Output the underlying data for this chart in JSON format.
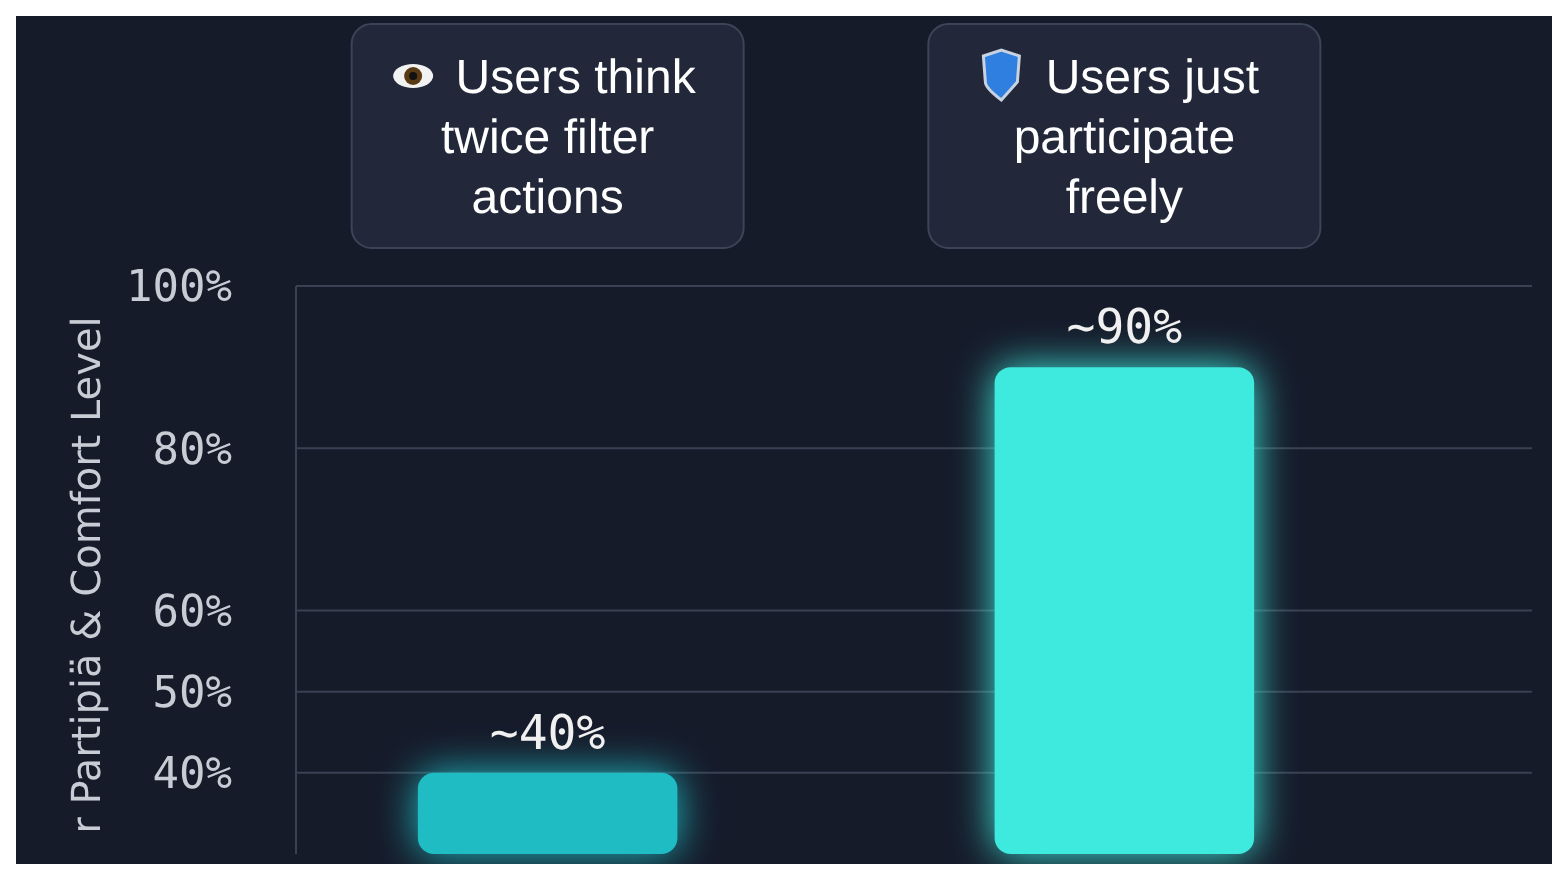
{
  "chart_data": {
    "type": "bar",
    "ylabel": "r Partipiä & Comfort Level",
    "categories": [
      null,
      null
    ],
    "values": [
      40,
      90
    ],
    "colors": [
      "#1fbcc4",
      "#3ee9dd"
    ],
    "value_labels": [
      "~40%",
      "~90%"
    ],
    "ylim": [
      30,
      100
    ],
    "yticks": [
      {
        "value": 40,
        "label": "40%"
      },
      {
        "value": 50,
        "label": "50%"
      },
      {
        "value": 60,
        "label": "60%"
      },
      {
        "value": 80,
        "label": "80%"
      },
      {
        "value": 100,
        "label": "100%"
      }
    ],
    "grid": "y",
    "annotations": [
      "Users think twice filter actions",
      "Users just participate freely"
    ]
  }
}
